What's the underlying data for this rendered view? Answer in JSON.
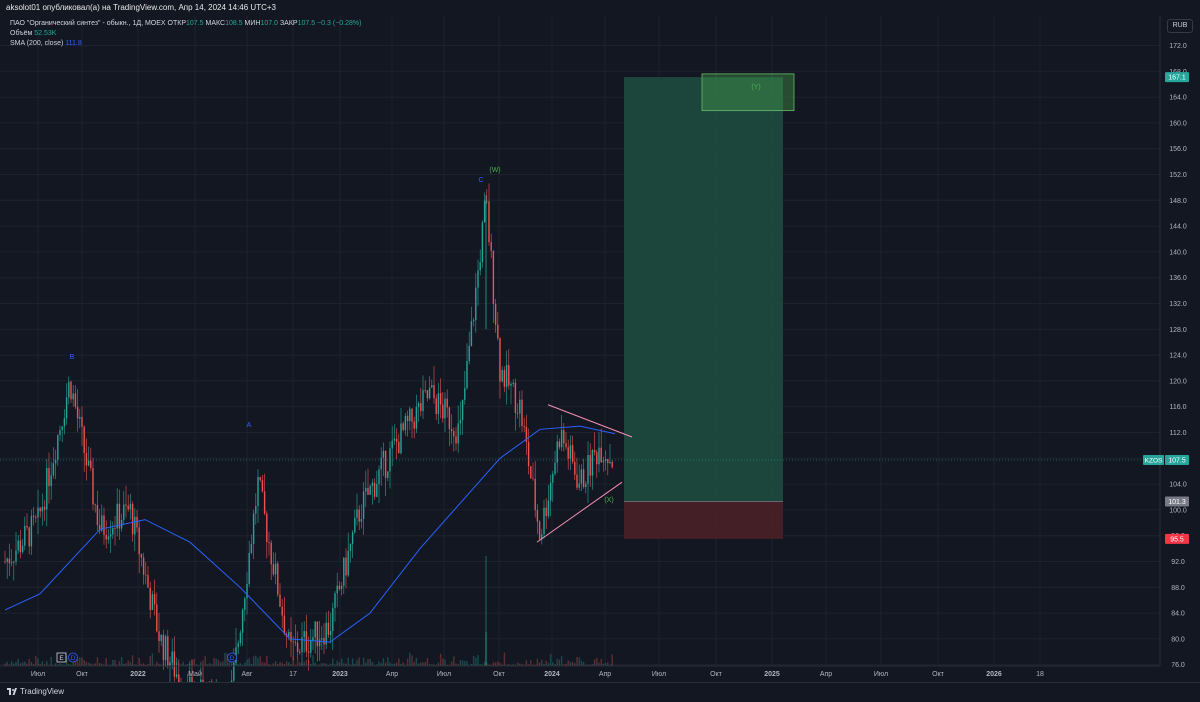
{
  "publisher_text": "aksolot01 опубликовал(а) на TradingView.com, Апр 14, 2024 14:46 UTC+3",
  "legend": {
    "symbol_line": "ПАО \"Органический синтез\" - обыкн., 1Д, MOEX",
    "open_label": "ОТКР",
    "open_value": "107.5",
    "high_label": "МАКС",
    "high_value": "108.5",
    "low_label": "МИН",
    "low_value": "107.0",
    "close_label": "ЗАКР",
    "close_value": "107.5",
    "change": "−0.3 (−0.28%)",
    "volume_label": "Объём",
    "volume_value": "52.53K",
    "sma_label": "SMA (200, close)",
    "sma_value": "111.8"
  },
  "currency_button": "RUB",
  "price_axis": {
    "ticks": [
      "172.0",
      "168.0",
      "164.0",
      "160.0",
      "156.0",
      "152.0",
      "148.0",
      "144.0",
      "140.0",
      "136.0",
      "132.0",
      "128.0",
      "124.0",
      "120.0",
      "116.0",
      "112.0",
      "108.0",
      "104.0",
      "100.0",
      "96.0",
      "92.0",
      "88.0",
      "84.0",
      "80.0",
      "76.0"
    ],
    "tick_values": [
      172,
      168,
      164,
      160,
      156,
      152,
      148,
      144,
      140,
      136,
      132,
      128,
      124,
      120,
      116,
      112,
      108,
      104,
      100,
      96,
      92,
      88,
      84,
      80,
      76
    ],
    "labels": {
      "target": "167.1",
      "ticker": "KZOS",
      "last": "107.5",
      "entry": "101.3",
      "stop": "95.5"
    }
  },
  "time_axis": {
    "ticks": [
      "Июл",
      "Окт",
      "2022",
      "Май",
      "Авг",
      "17",
      "2023",
      "Апр",
      "Июл",
      "Окт",
      "2024",
      "Апр",
      "Июл",
      "Окт",
      "2025",
      "Апр",
      "Июл",
      "Окт",
      "2026",
      "18"
    ]
  },
  "wave_labels": {
    "b": "B",
    "a": "A",
    "c": "C",
    "w": "(W)",
    "x": "(X)",
    "y": "(Y)"
  },
  "event_badges": {
    "e": "E",
    "d1": "D",
    "d2": "D"
  },
  "position": {
    "target": 167.1,
    "entry": 101.3,
    "stop": 95.5
  },
  "colors": {
    "background": "#131722",
    "up": "#26a69a",
    "down": "#ef5350",
    "sma": "#2962ff",
    "target_zone": "#1e4d40",
    "stop_zone": "#4a2026",
    "target_badge": "#26a69a",
    "stop_badge": "#f23645",
    "triangle_line": "#f48fb1"
  },
  "footer_logo": "TradingView"
}
